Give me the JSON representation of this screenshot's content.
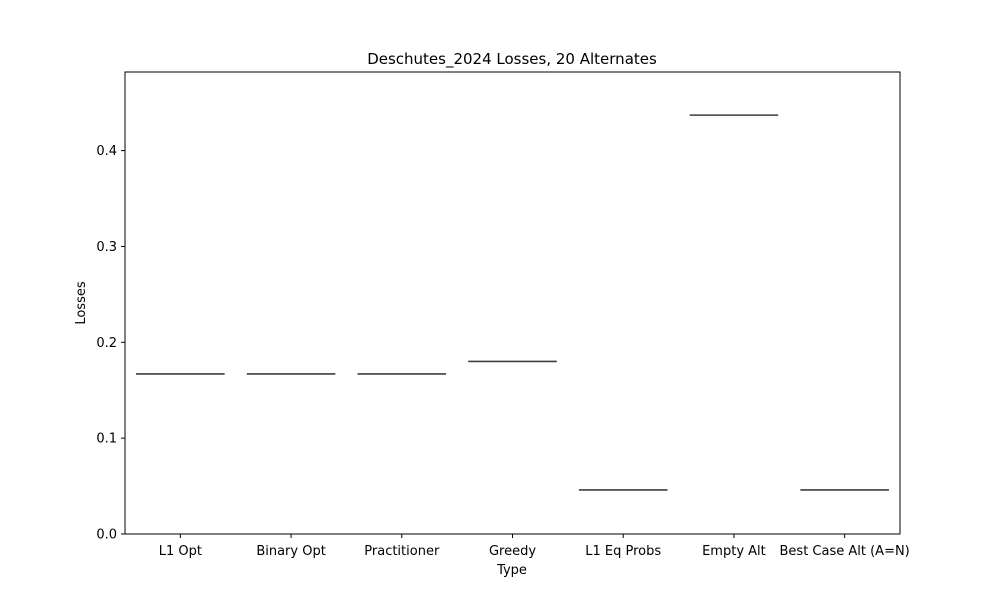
{
  "chart_data": {
    "type": "box",
    "title": "Deschutes_2024 Losses, 20 Alternates",
    "xlabel": "Type",
    "ylabel": "Losses",
    "categories": [
      "L1 Opt",
      "Binary Opt",
      "Practitioner",
      "Greedy",
      "L1 Eq Probs",
      "Empty Alt",
      "Best Case Alt (A=N)"
    ],
    "values": [
      0.167,
      0.167,
      0.167,
      0.18,
      0.046,
      0.437,
      0.046
    ],
    "ylim": [
      0.0,
      0.482
    ],
    "yticks": [
      0.0,
      0.1,
      0.2,
      0.3,
      0.4
    ],
    "ytick_labels": [
      "0.0",
      "0.1",
      "0.2",
      "0.3",
      "0.4"
    ],
    "grid": false,
    "mark_color": "#3f3f3f"
  }
}
